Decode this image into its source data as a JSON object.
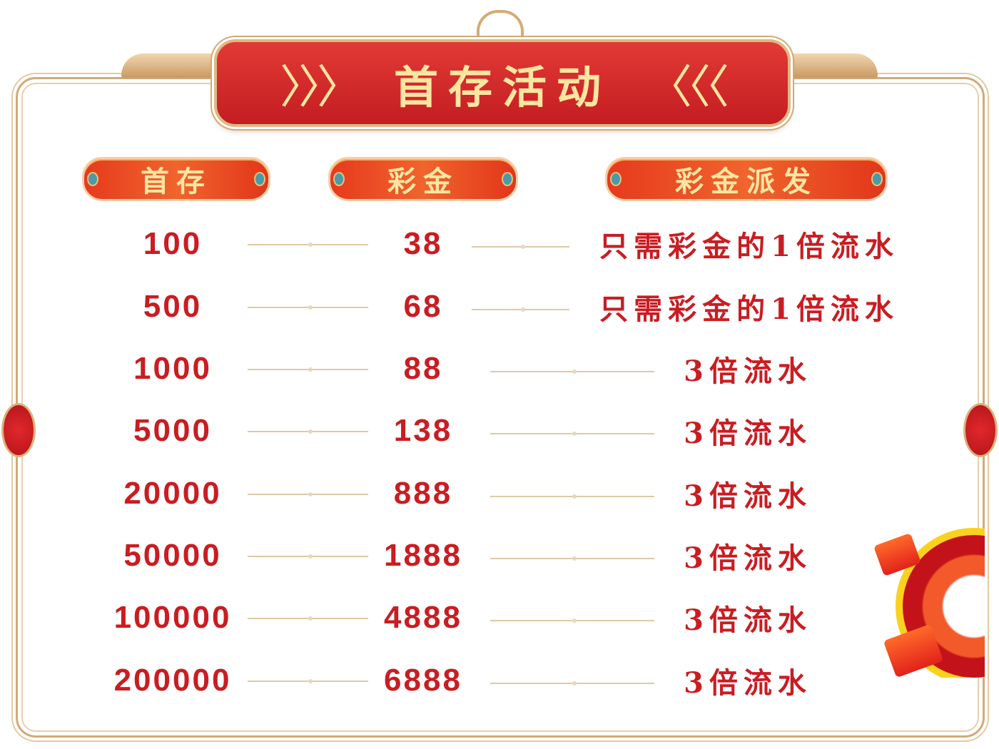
{
  "banner": {
    "title": "首存活动",
    "left_arrows": "〉〉〉",
    "right_arrows": "〈〈〈"
  },
  "headers": [
    "首存",
    "彩金",
    "彩金派发"
  ],
  "rows": [
    {
      "deposit": "100",
      "bonus": "38",
      "distribution": "只需彩金的1倍流水"
    },
    {
      "deposit": "500",
      "bonus": "68",
      "distribution": "只需彩金的1倍流水"
    },
    {
      "deposit": "1000",
      "bonus": "88",
      "distribution": "3倍流水"
    },
    {
      "deposit": "5000",
      "bonus": "138",
      "distribution": "3倍流水"
    },
    {
      "deposit": "20000",
      "bonus": "888",
      "distribution": "3倍流水"
    },
    {
      "deposit": "50000",
      "bonus": "1888",
      "distribution": "3倍流水"
    },
    {
      "deposit": "100000",
      "bonus": "4888",
      "distribution": "3倍流水"
    },
    {
      "deposit": "200000",
      "bonus": "6888",
      "distribution": "3倍流水"
    }
  ],
  "colors": {
    "red": "#c91d22",
    "gold_text": "#fbe6a0",
    "frame": "#d2aa78"
  },
  "icons": [
    "red-envelope-icon",
    "coin-ring-icon"
  ]
}
